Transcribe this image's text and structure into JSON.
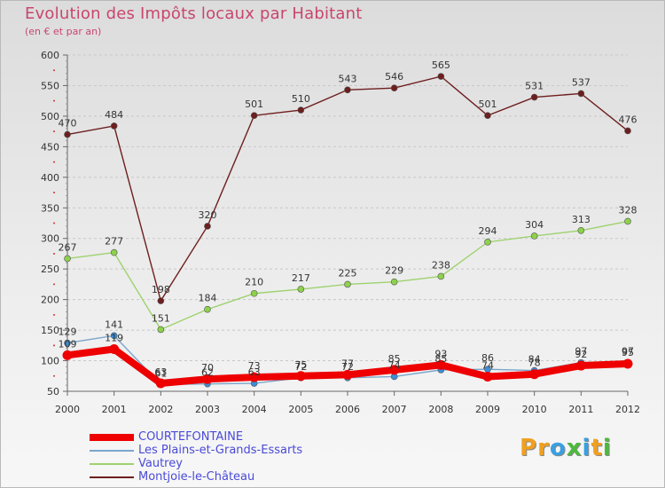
{
  "title": "Evolution des Impôts locaux par Habitant",
  "subtitle": "(en € et par an)",
  "logo": {
    "text": "Proxiti",
    "letter_colors": [
      "#f0a020",
      "#f0a020",
      "#3aa0e0",
      "#4cba3c",
      "#3aa0e0",
      "#f0a020",
      "#4cba3c"
    ]
  },
  "chart_data": {
    "type": "line",
    "x": [
      2000,
      2001,
      2002,
      2003,
      2004,
      2005,
      2006,
      2007,
      2008,
      2009,
      2010,
      2011,
      2012
    ],
    "ylim": [
      50,
      600
    ],
    "yticks": [
      50,
      100,
      150,
      200,
      250,
      300,
      350,
      400,
      450,
      500,
      550,
      600
    ],
    "xlabel": "",
    "ylabel": "",
    "grid": "horizontal dashed",
    "series": [
      {
        "name": "Montjoie-le-Château",
        "color": "#6e1e1e",
        "marker": "#6e1e1e",
        "values": [
          470,
          484,
          198,
          320,
          501,
          510,
          543,
          546,
          565,
          501,
          531,
          537,
          476
        ]
      },
      {
        "name": "Vautrey",
        "color": "#9ed26e",
        "marker": "#8cd24a",
        "values": [
          267,
          277,
          151,
          184,
          210,
          217,
          225,
          229,
          238,
          294,
          304,
          313,
          328
        ]
      },
      {
        "name": "Les Plains-et-Grands-Essarts",
        "color": "#7aa6cc",
        "marker": "#3a8ed8",
        "values": [
          129,
          141,
          61,
          62,
          63,
          72,
          72,
          74,
          85,
          86,
          84,
          97,
          97
        ]
      },
      {
        "name": "COURTEFONTAINE",
        "color": "#ee0000",
        "marker": "#ee0000",
        "values": [
          109,
          119,
          63,
          70,
          73,
          75,
          77,
          85,
          93,
          74,
          78,
          92,
          95
        ]
      }
    ],
    "legend_order": [
      "COURTEFONTAINE",
      "Les Plains-et-Grands-Essarts",
      "Vautrey",
      "Montjoie-le-Château"
    ],
    "legend_position": "bottom-left"
  }
}
